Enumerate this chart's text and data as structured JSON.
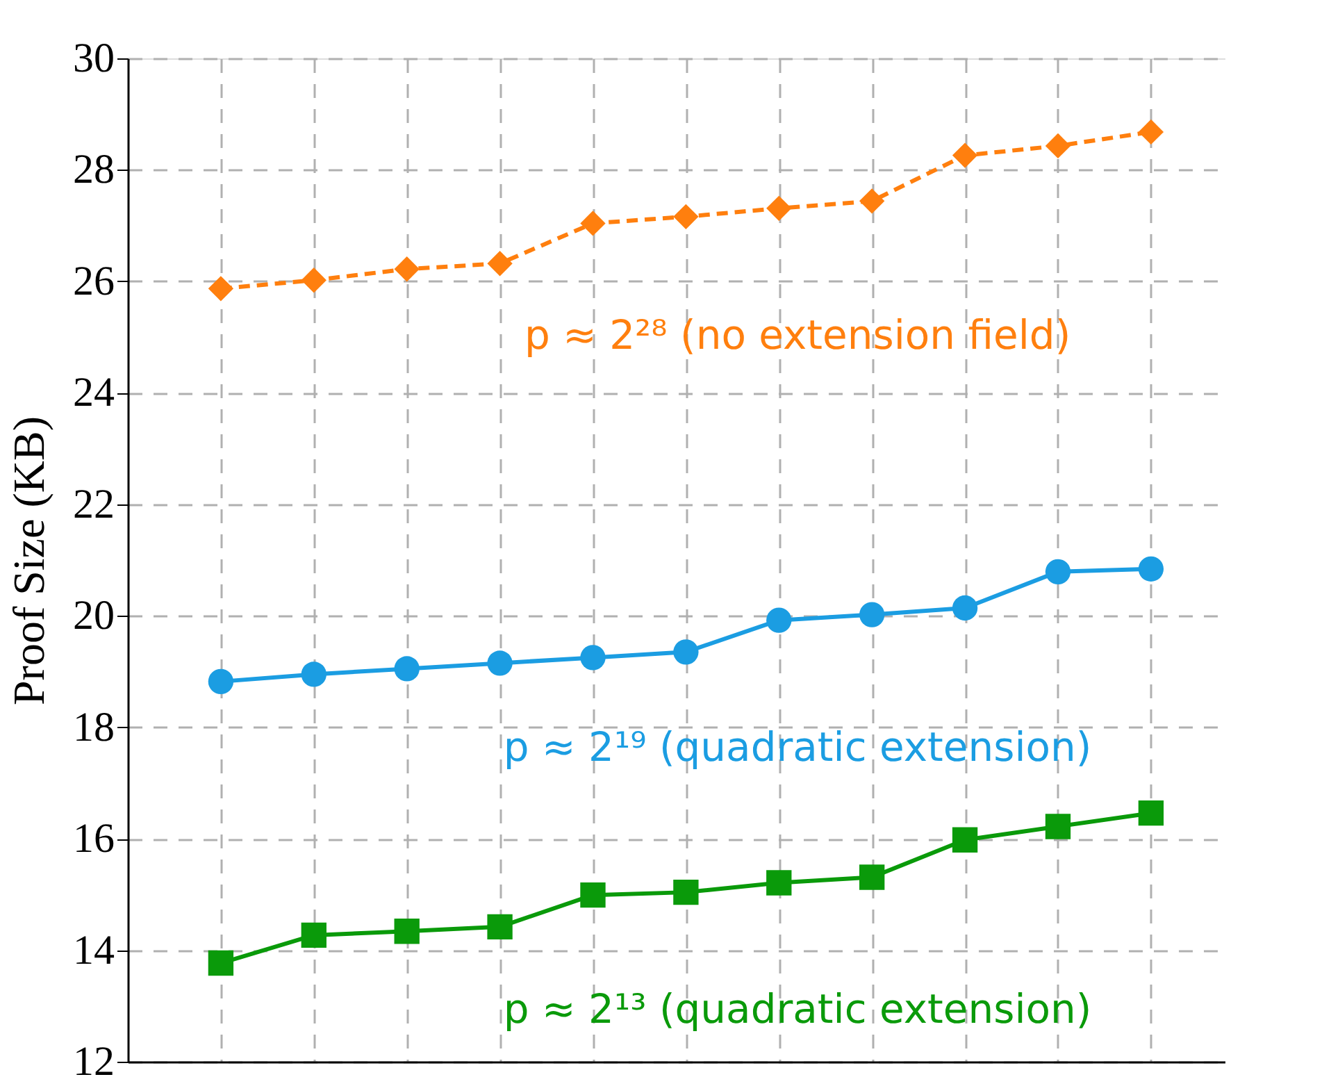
{
  "chart_data": {
    "type": "line",
    "ylabel": "Proof Size (KB)",
    "categories": [
      null,
      null,
      null,
      null,
      null,
      null,
      null,
      null,
      null,
      null,
      null
    ],
    "series": [
      {
        "name": "p ≈ 2²⁸ (no extension field)",
        "color": "#ff7f0e",
        "marker": "diamond",
        "line_style": "dashed",
        "values": [
          25.87,
          26.02,
          26.22,
          26.32,
          27.04,
          27.16,
          27.31,
          27.44,
          28.26,
          28.43,
          28.68
        ]
      },
      {
        "name": "p ≈ 2¹⁹ (quadratic extension)",
        "color": "#1b9de2",
        "marker": "circle",
        "line_style": "solid",
        "values": [
          18.82,
          18.95,
          19.05,
          19.15,
          19.25,
          19.35,
          19.92,
          20.02,
          20.14,
          20.79,
          20.84
        ]
      },
      {
        "name": "p ≈ 2¹³ (quadratic extension)",
        "color": "#0a9a0a",
        "marker": "square",
        "line_style": "solid",
        "values": [
          13.77,
          14.27,
          14.34,
          14.42,
          14.99,
          15.04,
          15.21,
          15.31,
          15.98,
          16.22,
          16.46
        ]
      }
    ],
    "ylim": [
      12,
      30
    ],
    "yticks": [
      12,
      14,
      16,
      18,
      20,
      22,
      24,
      26,
      28,
      30
    ],
    "grid": true,
    "tick_labels": "y"
  }
}
